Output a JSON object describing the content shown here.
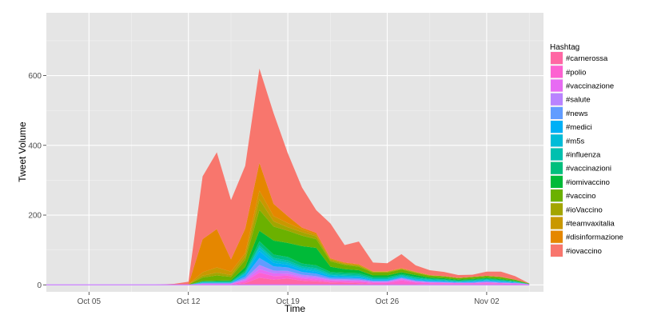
{
  "chart_data": {
    "type": "area",
    "stacked": true,
    "xlabel": "Time",
    "ylabel": "Tweet Volume",
    "legend_title": "Hashtag",
    "legend_position": "right",
    "grid": true,
    "panel_background": "#e5e5e5",
    "grid_color": "#ffffff",
    "xlim": [
      "2015-10-02",
      "2015-11-06"
    ],
    "ylim": [
      -20,
      780
    ],
    "x_ticks": [
      {
        "date": "2015-10-05",
        "label": "Oct 05"
      },
      {
        "date": "2015-10-12",
        "label": "Oct 12"
      },
      {
        "date": "2015-10-19",
        "label": "Oct 19"
      },
      {
        "date": "2015-10-26",
        "label": "Oct 26"
      },
      {
        "date": "2015-11-02",
        "label": "Nov 02"
      }
    ],
    "y_ticks": [
      0,
      200,
      400,
      600
    ],
    "x": [
      "2015-10-02",
      "2015-10-03",
      "2015-10-04",
      "2015-10-05",
      "2015-10-06",
      "2015-10-07",
      "2015-10-08",
      "2015-10-09",
      "2015-10-10",
      "2015-10-11",
      "2015-10-12",
      "2015-10-13",
      "2015-10-14",
      "2015-10-15",
      "2015-10-16",
      "2015-10-17",
      "2015-10-18",
      "2015-10-19",
      "2015-10-20",
      "2015-10-21",
      "2015-10-22",
      "2015-10-23",
      "2015-10-24",
      "2015-10-25",
      "2015-10-26",
      "2015-10-27",
      "2015-10-28",
      "2015-10-29",
      "2015-10-30",
      "2015-10-31",
      "2015-11-01",
      "2015-11-02",
      "2015-11-03",
      "2015-11-04",
      "2015-11-05"
    ],
    "series": [
      {
        "name": "#iovaccino",
        "color": "#f8766d",
        "values": [
          0,
          0,
          0,
          0,
          0,
          0,
          0,
          0,
          1,
          3,
          8,
          180,
          220,
          170,
          180,
          270,
          260,
          180,
          115,
          65,
          100,
          50,
          65,
          25,
          23,
          40,
          18,
          14,
          12,
          8,
          6,
          12,
          15,
          10,
          0
        ]
      },
      {
        "name": "#disinformazione",
        "color": "#e58700",
        "values": [
          0,
          0,
          0,
          0,
          0,
          0,
          0,
          0,
          0,
          0,
          0,
          95,
          110,
          35,
          70,
          80,
          35,
          20,
          5,
          5,
          2,
          2,
          2,
          1,
          1,
          1,
          1,
          0,
          0,
          0,
          0,
          0,
          0,
          0,
          0
        ]
      },
      {
        "name": "#teamvaxitalia",
        "color": "#c99800",
        "values": [
          0,
          0,
          0,
          0,
          0,
          0,
          0,
          0,
          0,
          0,
          0,
          10,
          15,
          10,
          10,
          25,
          15,
          12,
          8,
          5,
          3,
          2,
          2,
          1,
          1,
          1,
          1,
          1,
          0,
          0,
          0,
          0,
          0,
          0,
          0
        ]
      },
      {
        "name": "#ioVaccino",
        "color": "#a3a500",
        "values": [
          0,
          0,
          0,
          0,
          0,
          0,
          0,
          0,
          0,
          0,
          0,
          5,
          8,
          5,
          10,
          30,
          15,
          10,
          10,
          8,
          4,
          3,
          3,
          2,
          2,
          2,
          2,
          1,
          1,
          1,
          1,
          1,
          1,
          0,
          0
        ]
      },
      {
        "name": "#vaccino",
        "color": "#6bb100",
        "values": [
          0,
          0,
          0,
          0,
          0,
          0,
          0,
          0,
          0,
          0,
          1,
          10,
          15,
          10,
          20,
          60,
          40,
          35,
          30,
          25,
          15,
          12,
          10,
          8,
          8,
          8,
          6,
          5,
          5,
          4,
          5,
          5,
          5,
          3,
          1
        ]
      },
      {
        "name": "#iomivaccino",
        "color": "#00ba38",
        "values": [
          0,
          0,
          0,
          0,
          0,
          0,
          0,
          0,
          0,
          0,
          0,
          1,
          2,
          3,
          10,
          30,
          40,
          40,
          50,
          50,
          15,
          10,
          8,
          5,
          5,
          5,
          5,
          3,
          3,
          2,
          2,
          2,
          2,
          2,
          1
        ]
      },
      {
        "name": "#vaccinazioni",
        "color": "#00bf7d",
        "values": [
          0,
          0,
          0,
          0,
          0,
          0,
          0,
          0,
          0,
          0,
          0,
          2,
          2,
          2,
          5,
          12,
          10,
          10,
          8,
          8,
          5,
          5,
          5,
          3,
          3,
          3,
          3,
          2,
          2,
          2,
          2,
          2,
          2,
          1,
          0
        ]
      },
      {
        "name": "#influenza",
        "color": "#00c0af",
        "values": [
          0,
          0,
          0,
          0,
          0,
          0,
          0,
          0,
          0,
          0,
          0,
          1,
          1,
          1,
          3,
          6,
          6,
          6,
          5,
          5,
          4,
          4,
          4,
          3,
          3,
          3,
          3,
          2,
          2,
          2,
          2,
          2,
          2,
          1,
          0
        ]
      },
      {
        "name": "#m5s",
        "color": "#00bcd8",
        "values": [
          0,
          0,
          0,
          0,
          0,
          0,
          0,
          0,
          0,
          0,
          0,
          1,
          1,
          1,
          4,
          10,
          8,
          6,
          5,
          5,
          3,
          3,
          3,
          2,
          2,
          2,
          2,
          2,
          1,
          1,
          1,
          1,
          1,
          1,
          0
        ]
      },
      {
        "name": "#medici",
        "color": "#00b0f6",
        "values": [
          0,
          0,
          0,
          0,
          0,
          0,
          0,
          0,
          0,
          0,
          0,
          1,
          1,
          1,
          5,
          20,
          10,
          8,
          6,
          6,
          4,
          3,
          3,
          2,
          2,
          2,
          2,
          2,
          2,
          1,
          2,
          2,
          2,
          1,
          0
        ]
      },
      {
        "name": "#news",
        "color": "#619cff",
        "values": [
          0,
          0,
          0,
          0,
          0,
          0,
          0,
          0,
          0,
          0,
          0,
          1,
          1,
          1,
          6,
          20,
          12,
          10,
          8,
          7,
          4,
          4,
          4,
          2,
          2,
          2,
          2,
          2,
          2,
          1,
          2,
          2,
          2,
          1,
          0
        ]
      },
      {
        "name": "#salute",
        "color": "#b983ff",
        "values": [
          0,
          0,
          0,
          0,
          0,
          0,
          0,
          0,
          0,
          0,
          0,
          1,
          1,
          1,
          4,
          12,
          8,
          8,
          6,
          5,
          3,
          3,
          3,
          2,
          2,
          3,
          2,
          1,
          1,
          1,
          1,
          2,
          1,
          1,
          0
        ]
      },
      {
        "name": "#vaccinazione",
        "color": "#e76bf3",
        "values": [
          0,
          0,
          0,
          0,
          0,
          0,
          0,
          0,
          0,
          0,
          0,
          1,
          1,
          1,
          4,
          10,
          8,
          6,
          5,
          5,
          3,
          3,
          3,
          2,
          2,
          3,
          2,
          2,
          1,
          1,
          1,
          2,
          1,
          1,
          0
        ]
      },
      {
        "name": "#polio",
        "color": "#fd61d1",
        "values": [
          0,
          0,
          0,
          0,
          0,
          0,
          0,
          0,
          0,
          0,
          0,
          1,
          1,
          1,
          5,
          15,
          10,
          8,
          6,
          5,
          4,
          4,
          4,
          3,
          3,
          10,
          4,
          3,
          3,
          2,
          2,
          3,
          2,
          2,
          1
        ]
      },
      {
        "name": "#carnerossa",
        "color": "#ff67a4",
        "values": [
          0,
          0,
          0,
          0,
          0,
          0,
          0,
          0,
          0,
          0,
          0,
          1,
          1,
          1,
          5,
          20,
          15,
          18,
          12,
          10,
          7,
          6,
          5,
          3,
          3,
          3,
          3,
          2,
          2,
          2,
          2,
          2,
          2,
          1,
          1
        ]
      }
    ]
  }
}
